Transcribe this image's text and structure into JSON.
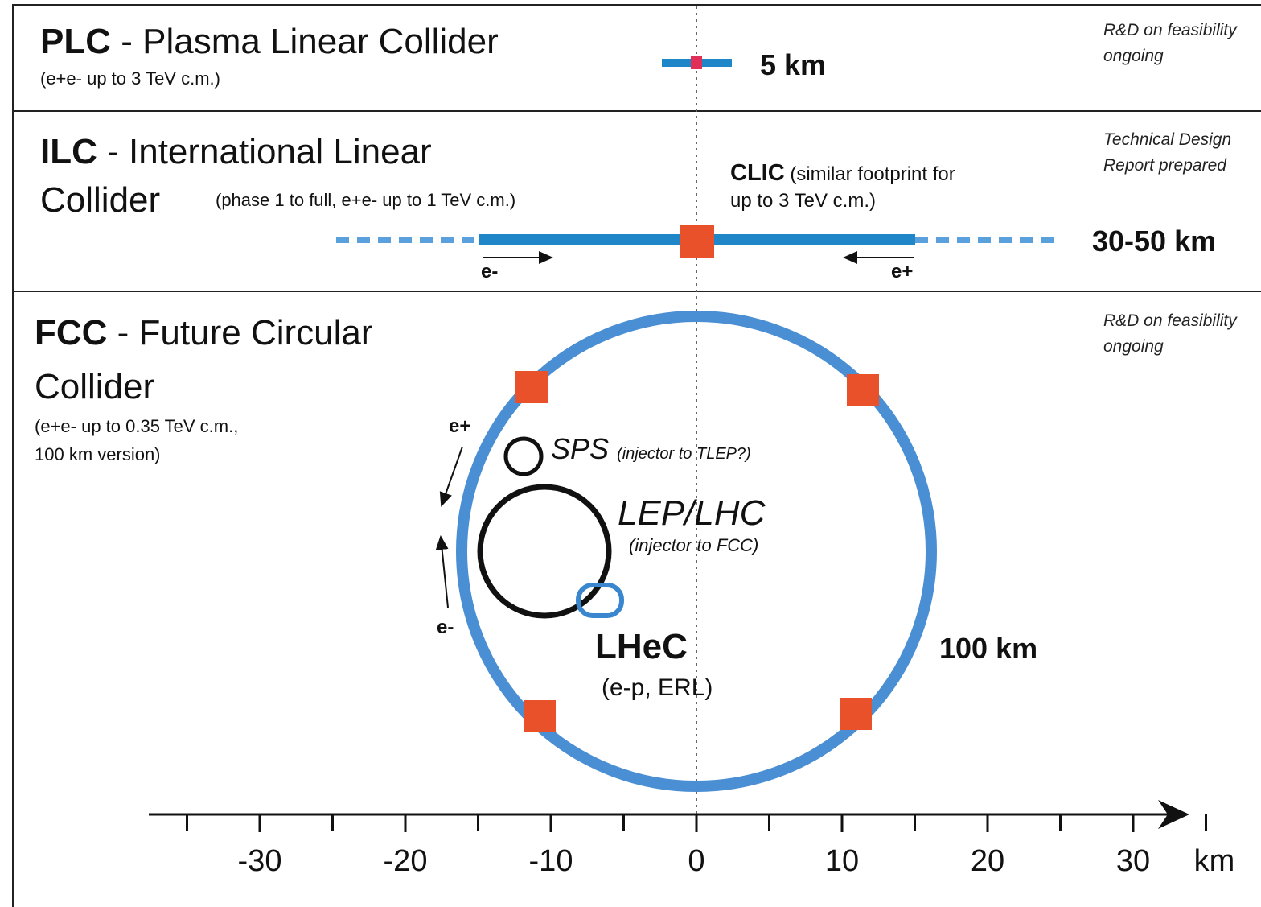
{
  "panels": [
    {
      "abbr": "PLC",
      "name": [
        "- Plasma Linear Collider"
      ],
      "note": [
        "(e+e- up to 3 TeV c.m.)"
      ],
      "length": "5 km",
      "status": [
        "R&D on feasibility",
        "ongoing"
      ]
    },
    {
      "abbr": "ILC",
      "name": [
        "- International Linear",
        "Collider"
      ],
      "note": [
        "(phase 1 to full, e+e- up to 1 TeV c.m.)"
      ],
      "length": "30-50 km",
      "status": [
        "Technical Design",
        "Report prepared"
      ],
      "clic": {
        "abbr": "CLIC",
        "text": [
          "(similar footprint for",
          "up to 3 TeV c.m.)"
        ]
      },
      "beams": [
        "e-",
        "e+"
      ]
    },
    {
      "abbr": "FCC",
      "name": [
        "- Future Circular",
        "Collider"
      ],
      "note": [
        "(e+e- up to 0.35 TeV c.m.,",
        "100 km version)"
      ],
      "length": "100 km",
      "status": [
        "R&D on feasibility",
        "ongoing"
      ],
      "beams": [
        "e+",
        "e-"
      ],
      "rings": [
        {
          "name": "SPS",
          "note": "(injector to TLEP?)"
        },
        {
          "name": "LEP/LHC",
          "note": "(injector to FCC)"
        },
        {
          "name": "LHeC",
          "note": "(e-p, ERL)"
        }
      ]
    }
  ],
  "axis": {
    "ticks": [
      -30,
      -20,
      -10,
      0,
      10,
      20,
      30
    ],
    "unit": "km"
  }
}
